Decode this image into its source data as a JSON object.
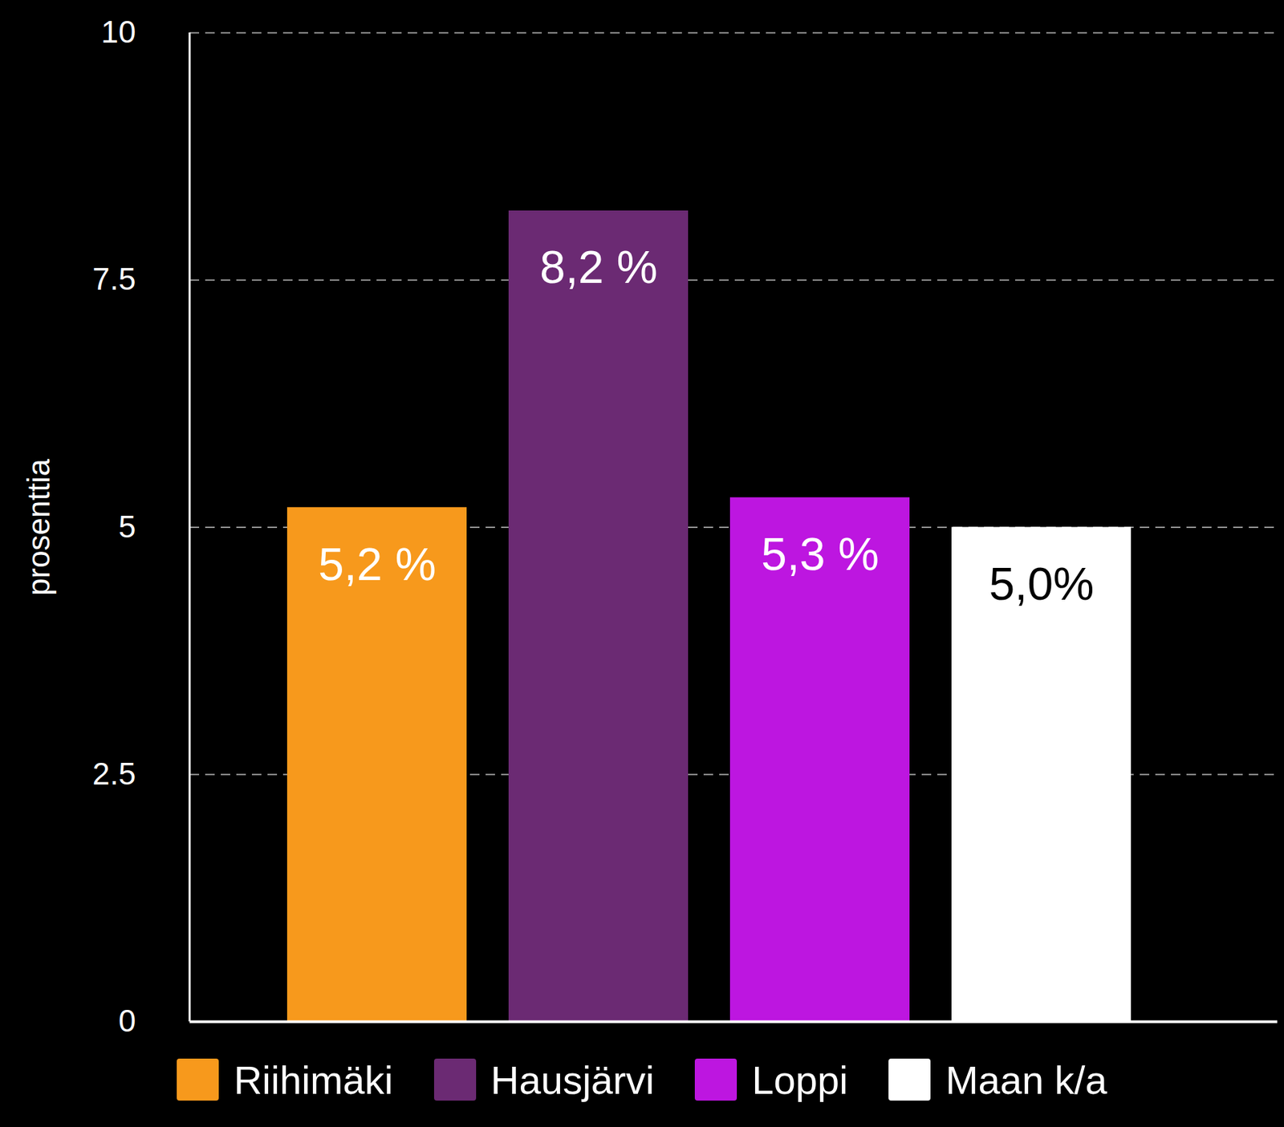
{
  "chart_data": {
    "type": "bar",
    "categories": [
      "Riihimäki",
      "Hausjärvi",
      "Loppi",
      "Maan k/a"
    ],
    "values": [
      5.2,
      8.2,
      5.3,
      5.0
    ],
    "value_labels": [
      "5,2 %",
      "8,2 %",
      "5,3 %",
      "5,0%"
    ],
    "colors": [
      "#f7991c",
      "#6b2a73",
      "#bd16e0",
      "#ffffff"
    ],
    "ylabel": "prosenttia",
    "ylim": [
      0,
      10
    ],
    "yticks": [
      0,
      2.5,
      5,
      7.5,
      10
    ],
    "grid": true,
    "data_labels": true,
    "tick_labels": "y",
    "legend": "bottom"
  }
}
